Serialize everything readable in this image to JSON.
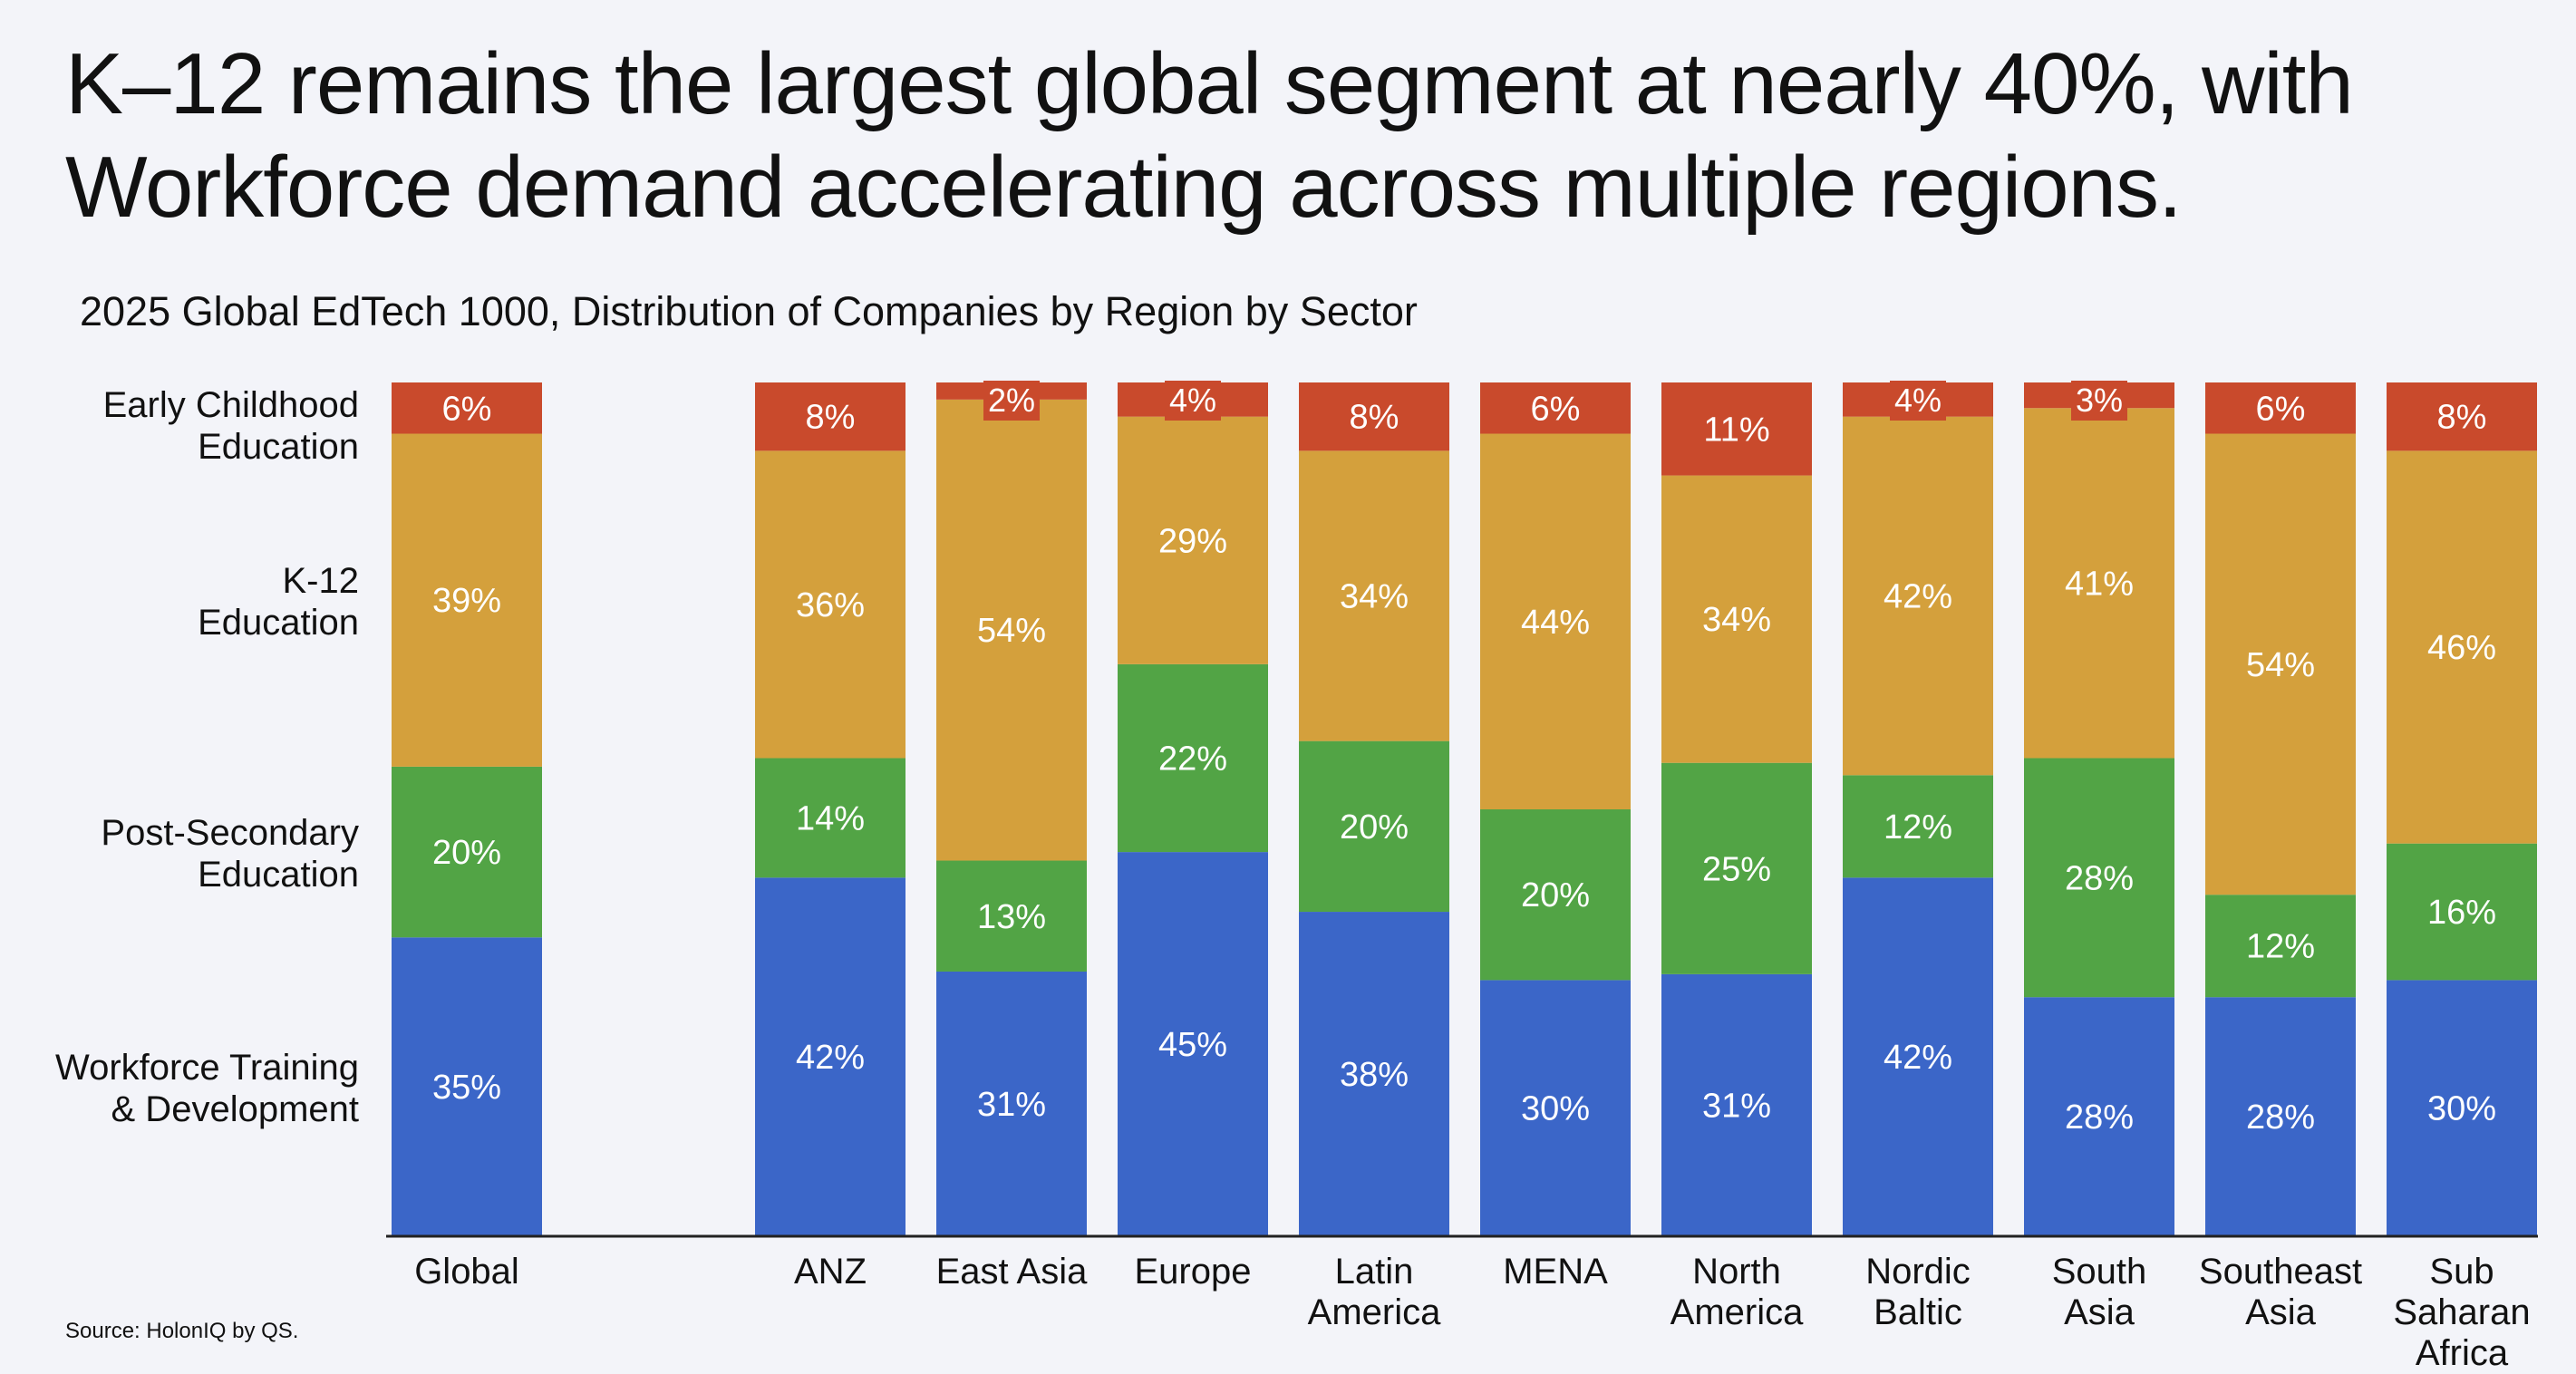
{
  "headline": "K–12 remains the largest global segment at nearly 40%, with Workforce demand accelerating across multiple regions.",
  "subtitle": "2025 Global EdTech 1000, Distribution of Companies by Region by Sector",
  "source": "Source: HolonIQ by QS.",
  "chart_data": {
    "type": "bar",
    "stacked": true,
    "normalized": true,
    "title": "2025 Global EdTech 1000, Distribution of Companies by Region by Sector",
    "categories": [
      "Global",
      "ANZ",
      "East Asia",
      "Europe",
      "Latin America",
      "MENA",
      "North America",
      "Nordic Baltic",
      "South Asia",
      "Southeast Asia",
      "Sub Saharan Africa"
    ],
    "category_labels": [
      [
        "Global"
      ],
      [
        "ANZ"
      ],
      [
        "East Asia"
      ],
      [
        "Europe"
      ],
      [
        "Latin",
        "America"
      ],
      [
        "MENA"
      ],
      [
        "North",
        "America"
      ],
      [
        "Nordic",
        "Baltic"
      ],
      [
        "South",
        "Asia"
      ],
      [
        "Southeast",
        "Asia"
      ],
      [
        "Sub",
        "Saharan",
        "Africa"
      ]
    ],
    "ylim": [
      0,
      100
    ],
    "unit": "%",
    "series": [
      {
        "name": "Workforce Training & Development",
        "legend_lines": [
          "Workforce Training",
          "& Development"
        ],
        "color": "#3b66c8",
        "values": [
          35,
          42,
          31,
          45,
          38,
          30,
          31,
          42,
          28,
          28,
          30
        ],
        "value_labels": [
          "35%",
          "42%",
          "31%",
          "45%",
          "38%",
          "30%",
          "31%",
          "42%",
          "28%",
          "28%",
          "30%"
        ]
      },
      {
        "name": "Post-Secondary Education",
        "legend_lines": [
          "Post-Secondary",
          "Education"
        ],
        "color": "#52a445",
        "values": [
          20,
          14,
          13,
          22,
          20,
          20,
          25,
          12,
          28,
          12,
          16
        ],
        "value_labels": [
          "20%",
          "14%",
          "13%",
          "22%",
          "20%",
          "20%",
          "25%",
          "12%",
          "28%",
          "12%",
          "16%"
        ]
      },
      {
        "name": "K-12 Education",
        "legend_lines": [
          "K-12",
          "Education"
        ],
        "color": "#d4a03c",
        "values": [
          39,
          36,
          54,
          29,
          34,
          44,
          34,
          42,
          41,
          54,
          46
        ],
        "value_labels": [
          "39%",
          "36%",
          "54%",
          "29%",
          "34%",
          "44%",
          "34%",
          "42%",
          "41%",
          "54%",
          "46%"
        ]
      },
      {
        "name": "Early Childhood Education",
        "legend_lines": [
          "Early Childhood",
          "Education"
        ],
        "color": "#c94a2c",
        "values": [
          6,
          8,
          2,
          4,
          8,
          6,
          11,
          4,
          3,
          6,
          8
        ],
        "value_labels": [
          "6%",
          "8%",
          "2%",
          "4%",
          "8%",
          "6%",
          "11%",
          "4%",
          "3%",
          "6%",
          "8%"
        ]
      }
    ]
  }
}
